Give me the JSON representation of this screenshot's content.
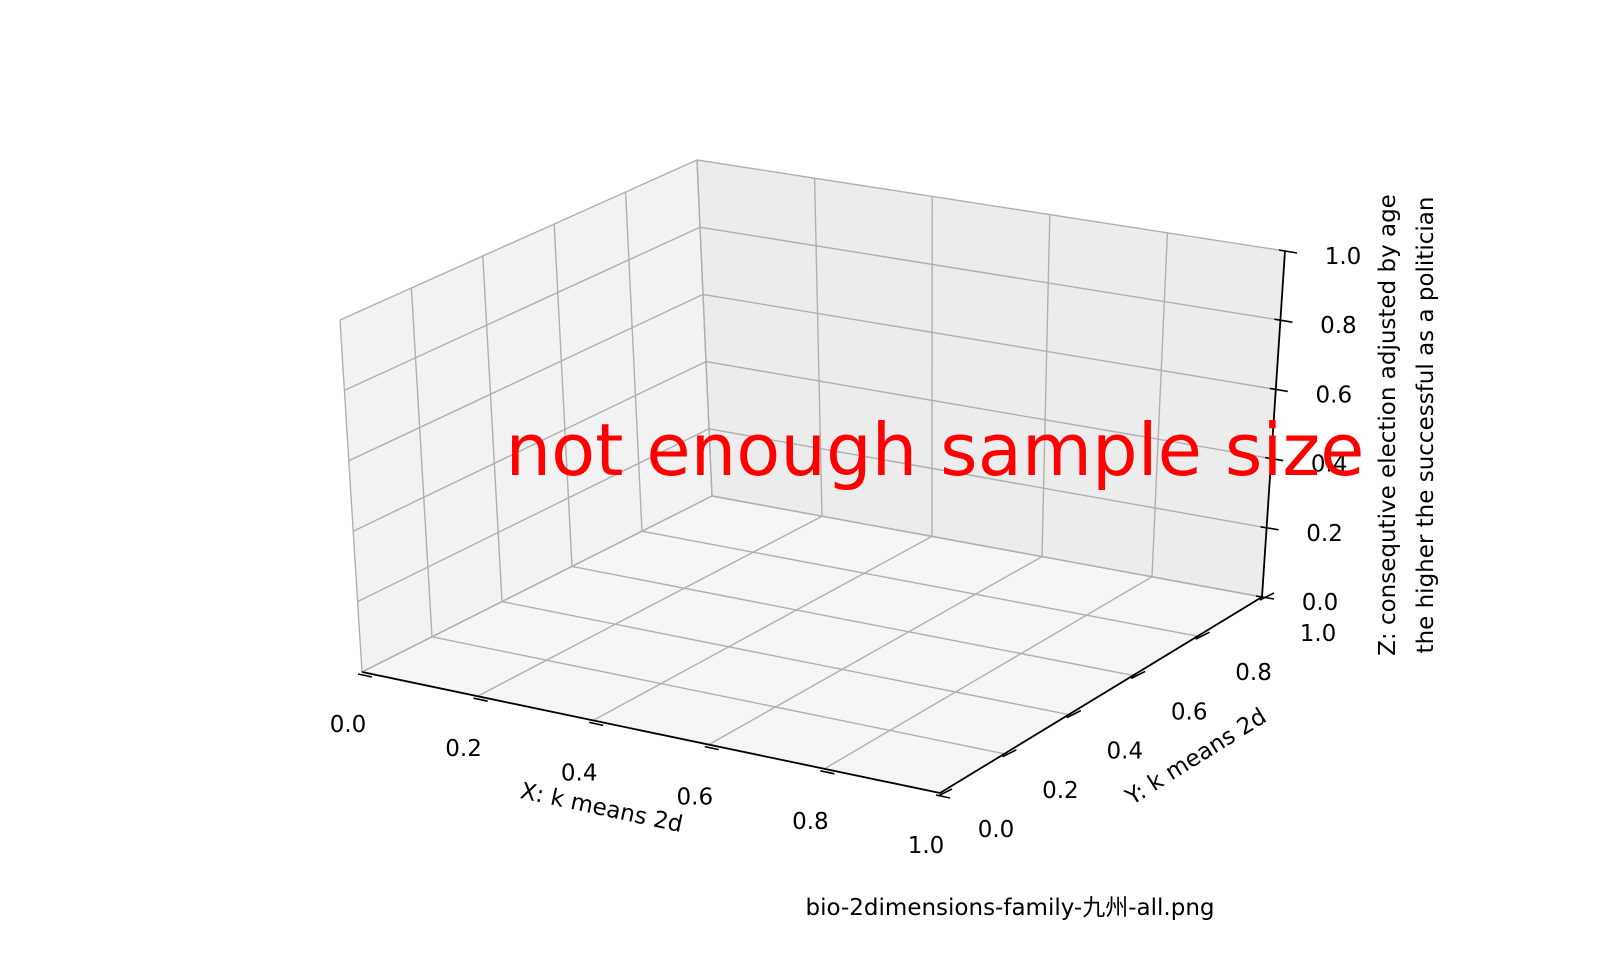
{
  "chart_data": {
    "type": "scatter",
    "projection": "3d",
    "series": [],
    "xlabel": "X: k means 2d",
    "ylabel": "Y: k means 2d",
    "zlabel_lines": [
      "Z: consequtive election adjusted by age",
      "the higher the successful as a politician"
    ],
    "xlim": [
      0,
      1
    ],
    "ylim": [
      0,
      1
    ],
    "zlim": [
      0,
      1
    ],
    "ticks": [
      "0.0",
      "0.2",
      "0.4",
      "0.6",
      "0.8",
      "1.0"
    ],
    "grid": true,
    "annotation": "not enough sample size",
    "annotation_color": "#ff0000",
    "pane_colors": {
      "left": "#f2f2f2",
      "back": "#ececec",
      "floor": "#f5f5f5"
    },
    "grid_color": "#b0b0b0"
  },
  "footer": {
    "filename": "bio-2dimensions-family-九州-all.png"
  }
}
